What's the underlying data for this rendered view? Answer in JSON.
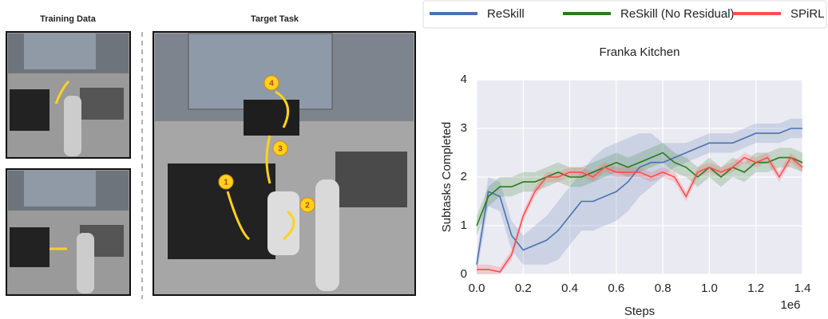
{
  "panels": {
    "training_label": "Training Data",
    "target_label": "Target Task",
    "markers": [
      "1",
      "2",
      "3",
      "4"
    ]
  },
  "chart_data": {
    "type": "line",
    "title": "Franka Kitchen",
    "x_label": "Steps",
    "x_offset_label": "1e6",
    "y_label": "Subtasks Completed",
    "x": [
      0,
      0.05,
      0.1,
      0.15,
      0.2,
      0.25,
      0.3,
      0.35,
      0.4,
      0.45,
      0.5,
      0.55,
      0.6,
      0.65,
      0.7,
      0.75,
      0.8,
      0.85,
      0.9,
      0.95,
      1.0,
      1.05,
      1.1,
      1.15,
      1.2,
      1.25,
      1.3,
      1.35,
      1.4
    ],
    "xlim": [
      0,
      1.4
    ],
    "xticks": [
      {
        "value": 0,
        "label": "0.0"
      },
      {
        "value": 0.2,
        "label": "0.2"
      },
      {
        "value": 0.4,
        "label": "0.4"
      },
      {
        "value": 0.6,
        "label": "0.6"
      },
      {
        "value": 0.8,
        "label": "0.8"
      },
      {
        "value": 1.0,
        "label": "1.0"
      },
      {
        "value": 1.2,
        "label": "1.2"
      },
      {
        "value": 1.4,
        "label": "1.4"
      }
    ],
    "ylim": [
      0,
      4
    ],
    "yticks": [
      0,
      1,
      2,
      3,
      4
    ],
    "grid": true,
    "series": [
      {
        "name": "ReSkill",
        "color": "#4c72b0",
        "values": [
          0.2,
          1.7,
          1.6,
          0.8,
          0.5,
          0.6,
          0.7,
          0.9,
          1.2,
          1.5,
          1.5,
          1.6,
          1.7,
          1.9,
          2.2,
          2.3,
          2.3,
          2.4,
          2.5,
          2.6,
          2.7,
          2.7,
          2.7,
          2.8,
          2.9,
          2.9,
          2.9,
          3.0,
          3.0
        ],
        "lower": [
          0.0,
          1.4,
          1.3,
          0.5,
          0.2,
          0.2,
          0.2,
          0.3,
          0.6,
          0.9,
          0.9,
          1.0,
          1.1,
          1.3,
          1.6,
          1.8,
          2.0,
          2.2,
          2.3,
          2.4,
          2.5,
          2.5,
          2.5,
          2.6,
          2.7,
          2.7,
          2.7,
          2.8,
          2.8
        ],
        "upper": [
          0.4,
          2.0,
          1.9,
          1.1,
          0.8,
          1.0,
          1.2,
          1.5,
          1.8,
          2.1,
          2.4,
          2.6,
          2.7,
          2.8,
          2.9,
          2.9,
          2.7,
          2.7,
          2.7,
          2.8,
          2.9,
          2.9,
          2.9,
          3.0,
          3.1,
          3.1,
          3.1,
          3.2,
          3.2
        ]
      },
      {
        "name": "ReSkill (No Residual)",
        "color": "#2a7a1e",
        "values": [
          1.0,
          1.6,
          1.8,
          1.8,
          1.9,
          1.9,
          2.0,
          2.1,
          2.0,
          2.0,
          2.1,
          2.2,
          2.3,
          2.2,
          2.3,
          2.4,
          2.5,
          2.3,
          2.2,
          2.0,
          2.2,
          2.0,
          2.2,
          2.1,
          2.3,
          2.3,
          2.4,
          2.4,
          2.3
        ],
        "lower": [
          0.8,
          1.4,
          1.6,
          1.6,
          1.7,
          1.7,
          1.8,
          1.9,
          1.8,
          1.8,
          1.9,
          2.0,
          2.1,
          2.0,
          2.1,
          2.2,
          2.3,
          2.1,
          2.0,
          1.8,
          2.0,
          1.8,
          2.0,
          1.9,
          2.1,
          2.1,
          2.2,
          2.2,
          2.1
        ],
        "upper": [
          1.2,
          1.8,
          2.0,
          2.0,
          2.1,
          2.1,
          2.2,
          2.3,
          2.2,
          2.2,
          2.3,
          2.4,
          2.5,
          2.4,
          2.5,
          2.6,
          2.7,
          2.5,
          2.4,
          2.2,
          2.4,
          2.2,
          2.4,
          2.3,
          2.5,
          2.5,
          2.6,
          2.6,
          2.5
        ]
      },
      {
        "name": "SPiRL",
        "color": "#ff4d4d",
        "values": [
          0.1,
          0.1,
          0.05,
          0.4,
          1.2,
          1.7,
          2.0,
          2.0,
          2.1,
          2.1,
          2.0,
          2.2,
          2.1,
          2.1,
          2.1,
          2.0,
          2.1,
          2.0,
          1.6,
          2.1,
          2.2,
          2.1,
          2.2,
          2.4,
          2.3,
          2.4,
          2.0,
          2.4,
          2.2
        ],
        "lower": [
          0.0,
          0.0,
          0.0,
          0.3,
          1.1,
          1.6,
          1.9,
          1.9,
          2.0,
          2.0,
          1.9,
          2.1,
          2.0,
          2.0,
          2.0,
          1.9,
          2.0,
          1.9,
          1.5,
          2.0,
          2.1,
          2.0,
          2.1,
          2.3,
          2.2,
          2.3,
          1.9,
          2.3,
          2.1
        ],
        "upper": [
          0.2,
          0.2,
          0.15,
          0.5,
          1.3,
          1.8,
          2.1,
          2.1,
          2.2,
          2.2,
          2.1,
          2.3,
          2.2,
          2.2,
          2.2,
          2.1,
          2.2,
          2.1,
          1.7,
          2.2,
          2.3,
          2.2,
          2.3,
          2.5,
          2.4,
          2.5,
          2.1,
          2.5,
          2.3
        ]
      }
    ]
  }
}
